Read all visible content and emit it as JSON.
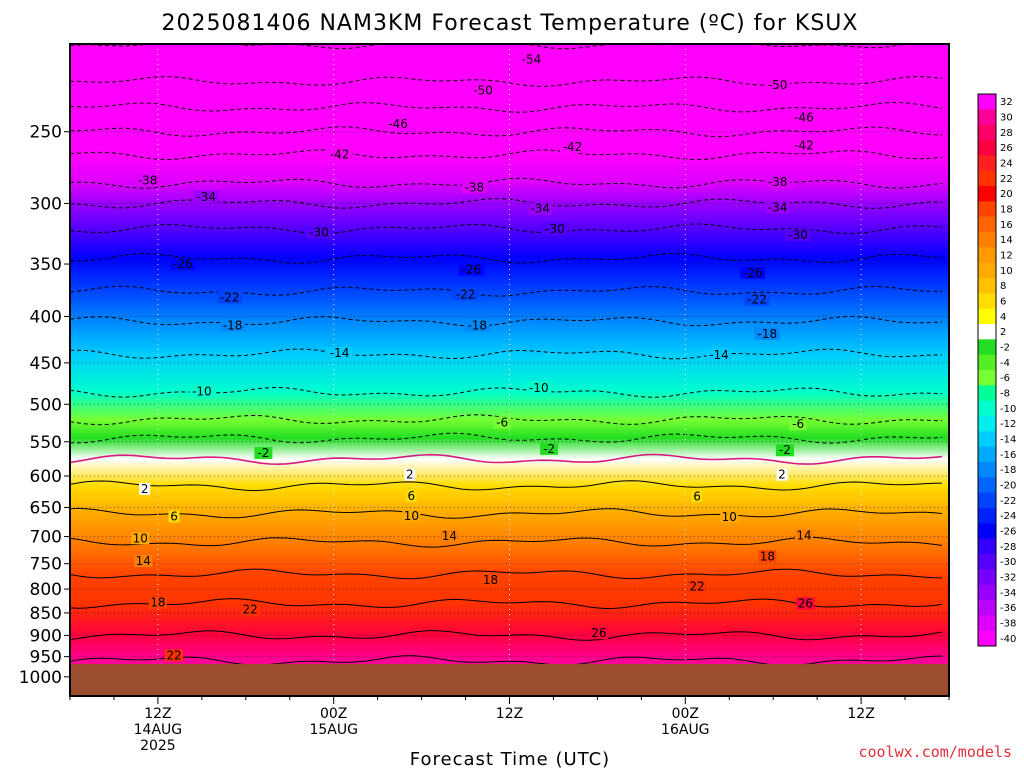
{
  "title": "2025081406 NAM3KM Forecast Temperature (ºC) for KSUX",
  "credit": "coolwx.com/models",
  "chart_data": {
    "type": "heatmap",
    "title": "2025081406 NAM3KM Forecast Temperature (ºC) for KSUX",
    "xlabel": "Forecast Time (UTC)",
    "ylabel": "",
    "x_range_hours_from_init": [
      0,
      60
    ],
    "y_scale": "log-pressure",
    "y_range_hPa": [
      1050,
      200
    ],
    "grid": true,
    "legend": "colorbar-right",
    "y_ticks": [
      {
        "value": 250,
        "label": "250"
      },
      {
        "value": 300,
        "label": "300"
      },
      {
        "value": 350,
        "label": "350"
      },
      {
        "value": 400,
        "label": "400"
      },
      {
        "value": 450,
        "label": "450"
      },
      {
        "value": 500,
        "label": "500"
      },
      {
        "value": 550,
        "label": "550"
      },
      {
        "value": 600,
        "label": "600"
      },
      {
        "value": 650,
        "label": "650"
      },
      {
        "value": 700,
        "label": "700"
      },
      {
        "value": 750,
        "label": "750"
      },
      {
        "value": 800,
        "label": "800"
      },
      {
        "value": 850,
        "label": "850"
      },
      {
        "value": 900,
        "label": "900"
      },
      {
        "value": 950,
        "label": "950"
      },
      {
        "value": 1000,
        "label": "1000"
      }
    ],
    "x_ticks": [
      {
        "hour": 6,
        "lines": [
          "12Z",
          "14AUG",
          "2025"
        ]
      },
      {
        "hour": 18,
        "lines": [
          "00Z",
          "15AUG"
        ]
      },
      {
        "hour": 30,
        "lines": [
          "12Z"
        ]
      },
      {
        "hour": 42,
        "lines": [
          "00Z",
          "16AUG"
        ]
      },
      {
        "hour": 54,
        "lines": [
          "12Z"
        ]
      }
    ],
    "surface_pressure_hPa": 968,
    "temperature_profile_by_pressure": [
      {
        "p": 200,
        "t": -56
      },
      {
        "p": 220,
        "t": -54
      },
      {
        "p": 235,
        "t": -50
      },
      {
        "p": 250,
        "t": -46
      },
      {
        "p": 265,
        "t": -42
      },
      {
        "p": 285,
        "t": -38
      },
      {
        "p": 300,
        "t": -34
      },
      {
        "p": 320,
        "t": -30
      },
      {
        "p": 345,
        "t": -26
      },
      {
        "p": 375,
        "t": -22
      },
      {
        "p": 405,
        "t": -18
      },
      {
        "p": 440,
        "t": -14
      },
      {
        "p": 485,
        "t": -10
      },
      {
        "p": 520,
        "t": -6
      },
      {
        "p": 545,
        "t": -2
      },
      {
        "p": 575,
        "t": 2
      },
      {
        "p": 615,
        "t": 6
      },
      {
        "p": 660,
        "t": 10
      },
      {
        "p": 710,
        "t": 14
      },
      {
        "p": 770,
        "t": 18
      },
      {
        "p": 830,
        "t": 22
      },
      {
        "p": 900,
        "t": 26
      },
      {
        "p": 960,
        "t": 30
      }
    ],
    "contour_labels": [
      {
        "value": "-54",
        "hour": 31.5,
        "p": 208
      },
      {
        "value": "-50",
        "hour": 28.2,
        "p": 225
      },
      {
        "value": "-50",
        "hour": 48.3,
        "p": 222
      },
      {
        "value": "-46",
        "hour": 22.4,
        "p": 245
      },
      {
        "value": "-46",
        "hour": 50.1,
        "p": 241
      },
      {
        "value": "-42",
        "hour": 18.4,
        "p": 265
      },
      {
        "value": "-42",
        "hour": 34.3,
        "p": 260
      },
      {
        "value": "-42",
        "hour": 50.1,
        "p": 259
      },
      {
        "value": "-38",
        "hour": 5.3,
        "p": 283
      },
      {
        "value": "-38",
        "hour": 27.6,
        "p": 288
      },
      {
        "value": "-38",
        "hour": 48.3,
        "p": 284
      },
      {
        "value": "-34",
        "hour": 9.3,
        "p": 295
      },
      {
        "value": "-34",
        "hour": 32.1,
        "p": 304
      },
      {
        "value": "-34",
        "hour": 48.3,
        "p": 303
      },
      {
        "value": "-30",
        "hour": 17.0,
        "p": 323
      },
      {
        "value": "-30",
        "hour": 33.1,
        "p": 320
      },
      {
        "value": "-30",
        "hour": 49.7,
        "p": 325
      },
      {
        "value": "-26",
        "hour": 7.7,
        "p": 350
      },
      {
        "value": "-26",
        "hour": 27.4,
        "p": 355
      },
      {
        "value": "-26",
        "hour": 46.6,
        "p": 358
      },
      {
        "value": "-22",
        "hour": 10.9,
        "p": 381
      },
      {
        "value": "-22",
        "hour": 27.0,
        "p": 378
      },
      {
        "value": "-22",
        "hour": 46.9,
        "p": 383
      },
      {
        "value": "-18",
        "hour": 11.1,
        "p": 409
      },
      {
        "value": "-18",
        "hour": 27.8,
        "p": 409
      },
      {
        "value": "-18",
        "hour": 47.6,
        "p": 418
      },
      {
        "value": "-14",
        "hour": 18.4,
        "p": 439
      },
      {
        "value": "-14",
        "hour": 44.3,
        "p": 441
      },
      {
        "value": "-10",
        "hour": 9.0,
        "p": 484
      },
      {
        "value": "-10",
        "hour": 32.0,
        "p": 480
      },
      {
        "value": "-6",
        "hour": 29.5,
        "p": 524
      },
      {
        "value": "-6",
        "hour": 49.7,
        "p": 526
      },
      {
        "value": "-2",
        "hour": 13.2,
        "p": 566
      },
      {
        "value": "-2",
        "hour": 32.7,
        "p": 560
      },
      {
        "value": "-2",
        "hour": 48.8,
        "p": 562
      },
      {
        "value": "2",
        "hour": 5.1,
        "p": 620
      },
      {
        "value": "2",
        "hour": 23.2,
        "p": 598
      },
      {
        "value": "2",
        "hour": 48.6,
        "p": 598
      },
      {
        "value": "6",
        "hour": 7.1,
        "p": 665
      },
      {
        "value": "6",
        "hour": 23.3,
        "p": 631
      },
      {
        "value": "6",
        "hour": 42.8,
        "p": 632
      },
      {
        "value": "10",
        "hour": 4.8,
        "p": 703
      },
      {
        "value": "10",
        "hour": 23.3,
        "p": 664
      },
      {
        "value": "10",
        "hour": 45.0,
        "p": 666
      },
      {
        "value": "14",
        "hour": 5.0,
        "p": 745
      },
      {
        "value": "14",
        "hour": 25.9,
        "p": 699
      },
      {
        "value": "14",
        "hour": 50.1,
        "p": 698
      },
      {
        "value": "18",
        "hour": 6.0,
        "p": 828
      },
      {
        "value": "18",
        "hour": 28.7,
        "p": 782
      },
      {
        "value": "18",
        "hour": 47.6,
        "p": 736
      },
      {
        "value": "22",
        "hour": 7.1,
        "p": 947
      },
      {
        "value": "22",
        "hour": 12.3,
        "p": 843
      },
      {
        "value": "22",
        "hour": 42.8,
        "p": 795
      },
      {
        "value": "26",
        "hour": 36.1,
        "p": 895
      },
      {
        "value": "26",
        "hour": 50.2,
        "p": 830
      }
    ],
    "colorbar": {
      "labels": [
        "32",
        "30",
        "28",
        "26",
        "24",
        "22",
        "20",
        "18",
        "16",
        "14",
        "12",
        "10",
        "8",
        "6",
        "4",
        "2",
        "-2",
        "-4",
        "-6",
        "-8",
        "-10",
        "-12",
        "-14",
        "-16",
        "-18",
        "-20",
        "-22",
        "-24",
        "-26",
        "-28",
        "-30",
        "-32",
        "-34",
        "-36",
        "-38",
        "-40"
      ],
      "colors": [
        "#ff00ff",
        "#ff0099",
        "#ff0066",
        "#ff0040",
        "#ff2020",
        "#ff3300",
        "#ff0000",
        "#ff4400",
        "#ff6600",
        "#ff7f00",
        "#ff9900",
        "#ffaa00",
        "#ffc000",
        "#ffdd00",
        "#ffff00",
        "#ffffff",
        "#22dd22",
        "#55ee22",
        "#77ff33",
        "#00ff99",
        "#00ffcc",
        "#00eeee",
        "#00ccff",
        "#00aaff",
        "#0088ff",
        "#0066ff",
        "#0044ff",
        "#0022ff",
        "#0000ff",
        "#3300ff",
        "#5500ff",
        "#7700ff",
        "#9900ff",
        "#bb00ff",
        "#dd00ff",
        "#ff00ff"
      ]
    }
  }
}
